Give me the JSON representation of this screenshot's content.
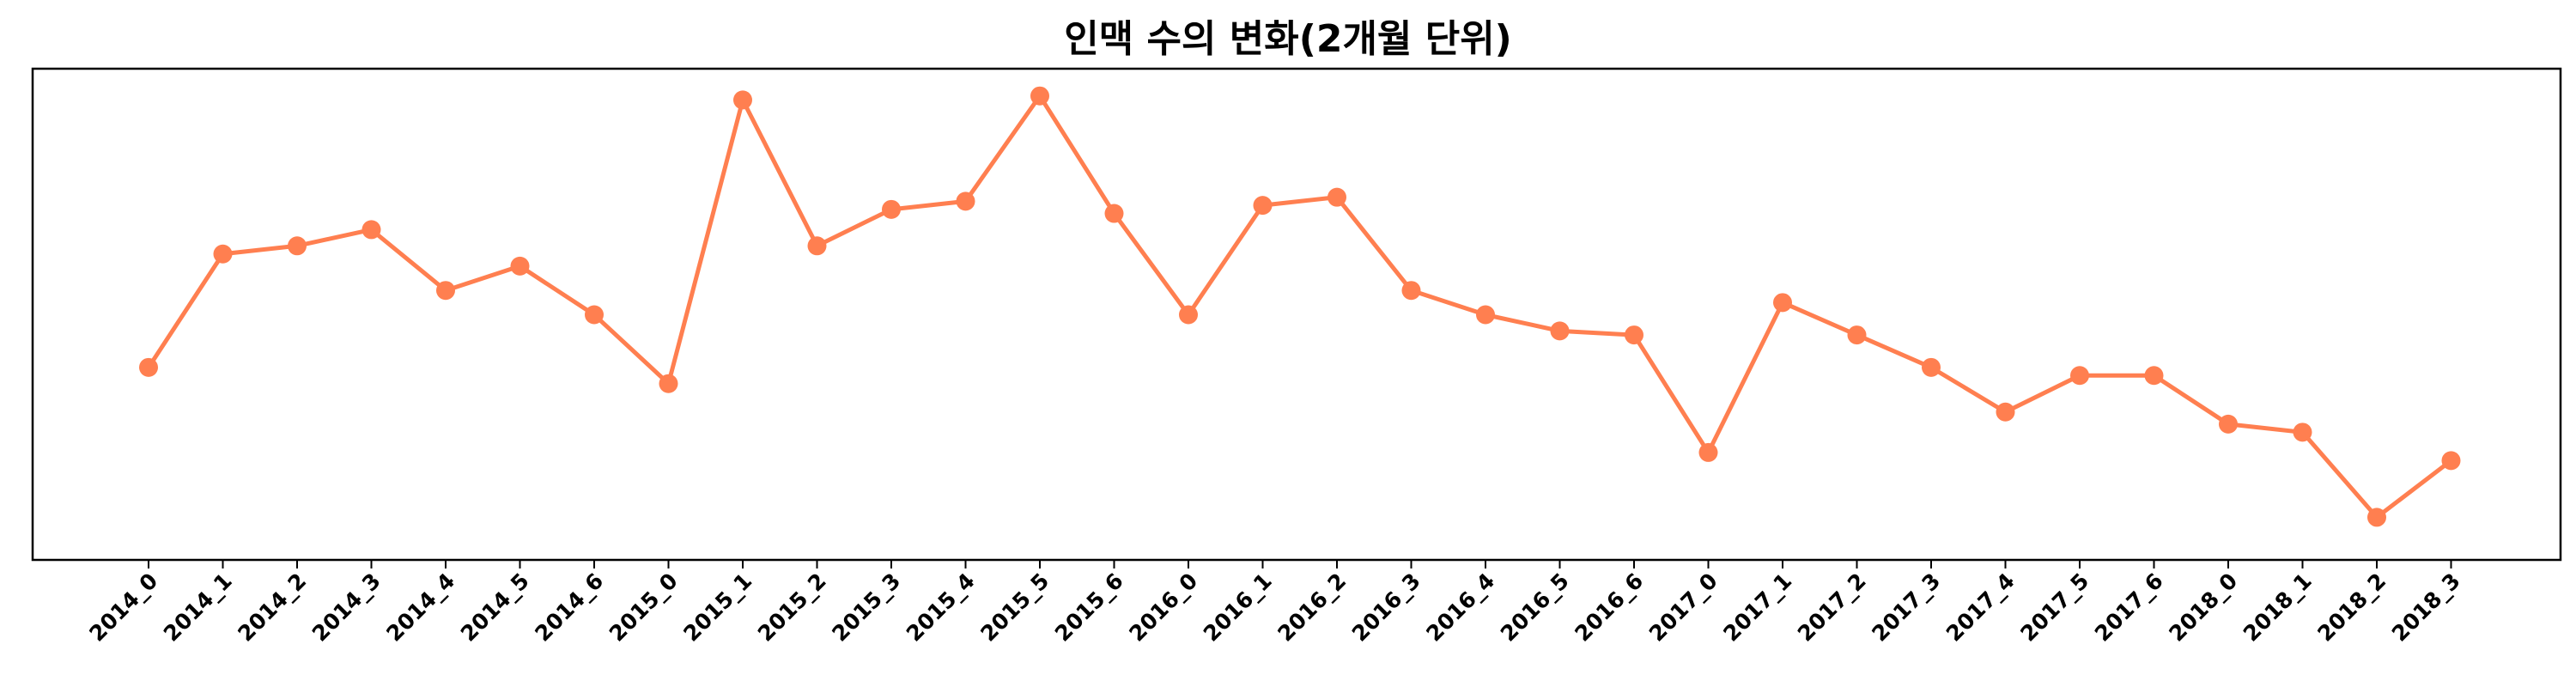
{
  "chart_data": {
    "type": "line",
    "title": "인맥 수의 변화(2개월 단위)",
    "xlabel": "",
    "ylabel": "",
    "categories": [
      "2014_0",
      "2014_1",
      "2014_2",
      "2014_3",
      "2014_4",
      "2014_5",
      "2014_6",
      "2015_0",
      "2015_1",
      "2015_2",
      "2015_3",
      "2015_4",
      "2015_5",
      "2015_6",
      "2016_0",
      "2016_1",
      "2016_2",
      "2016_3",
      "2016_4",
      "2016_5",
      "2016_6",
      "2017_0",
      "2017_1",
      "2017_2",
      "2017_3",
      "2017_4",
      "2017_5",
      "2017_6",
      "2018_0",
      "2018_1",
      "2018_2",
      "2018_3"
    ],
    "series": [
      {
        "color": "#FF7F50",
        "values": [
          42,
          70,
          72,
          76,
          61,
          67,
          55,
          38,
          108,
          72,
          81,
          83,
          109,
          80,
          55,
          82,
          84,
          61,
          55,
          51,
          50,
          21,
          58,
          50,
          42,
          31,
          40,
          40,
          28,
          26,
          5,
          19
        ]
      }
    ],
    "ylim": [
      0,
      110
    ],
    "yaxis_ticks_shown": false,
    "grid": false,
    "legend": "none"
  }
}
